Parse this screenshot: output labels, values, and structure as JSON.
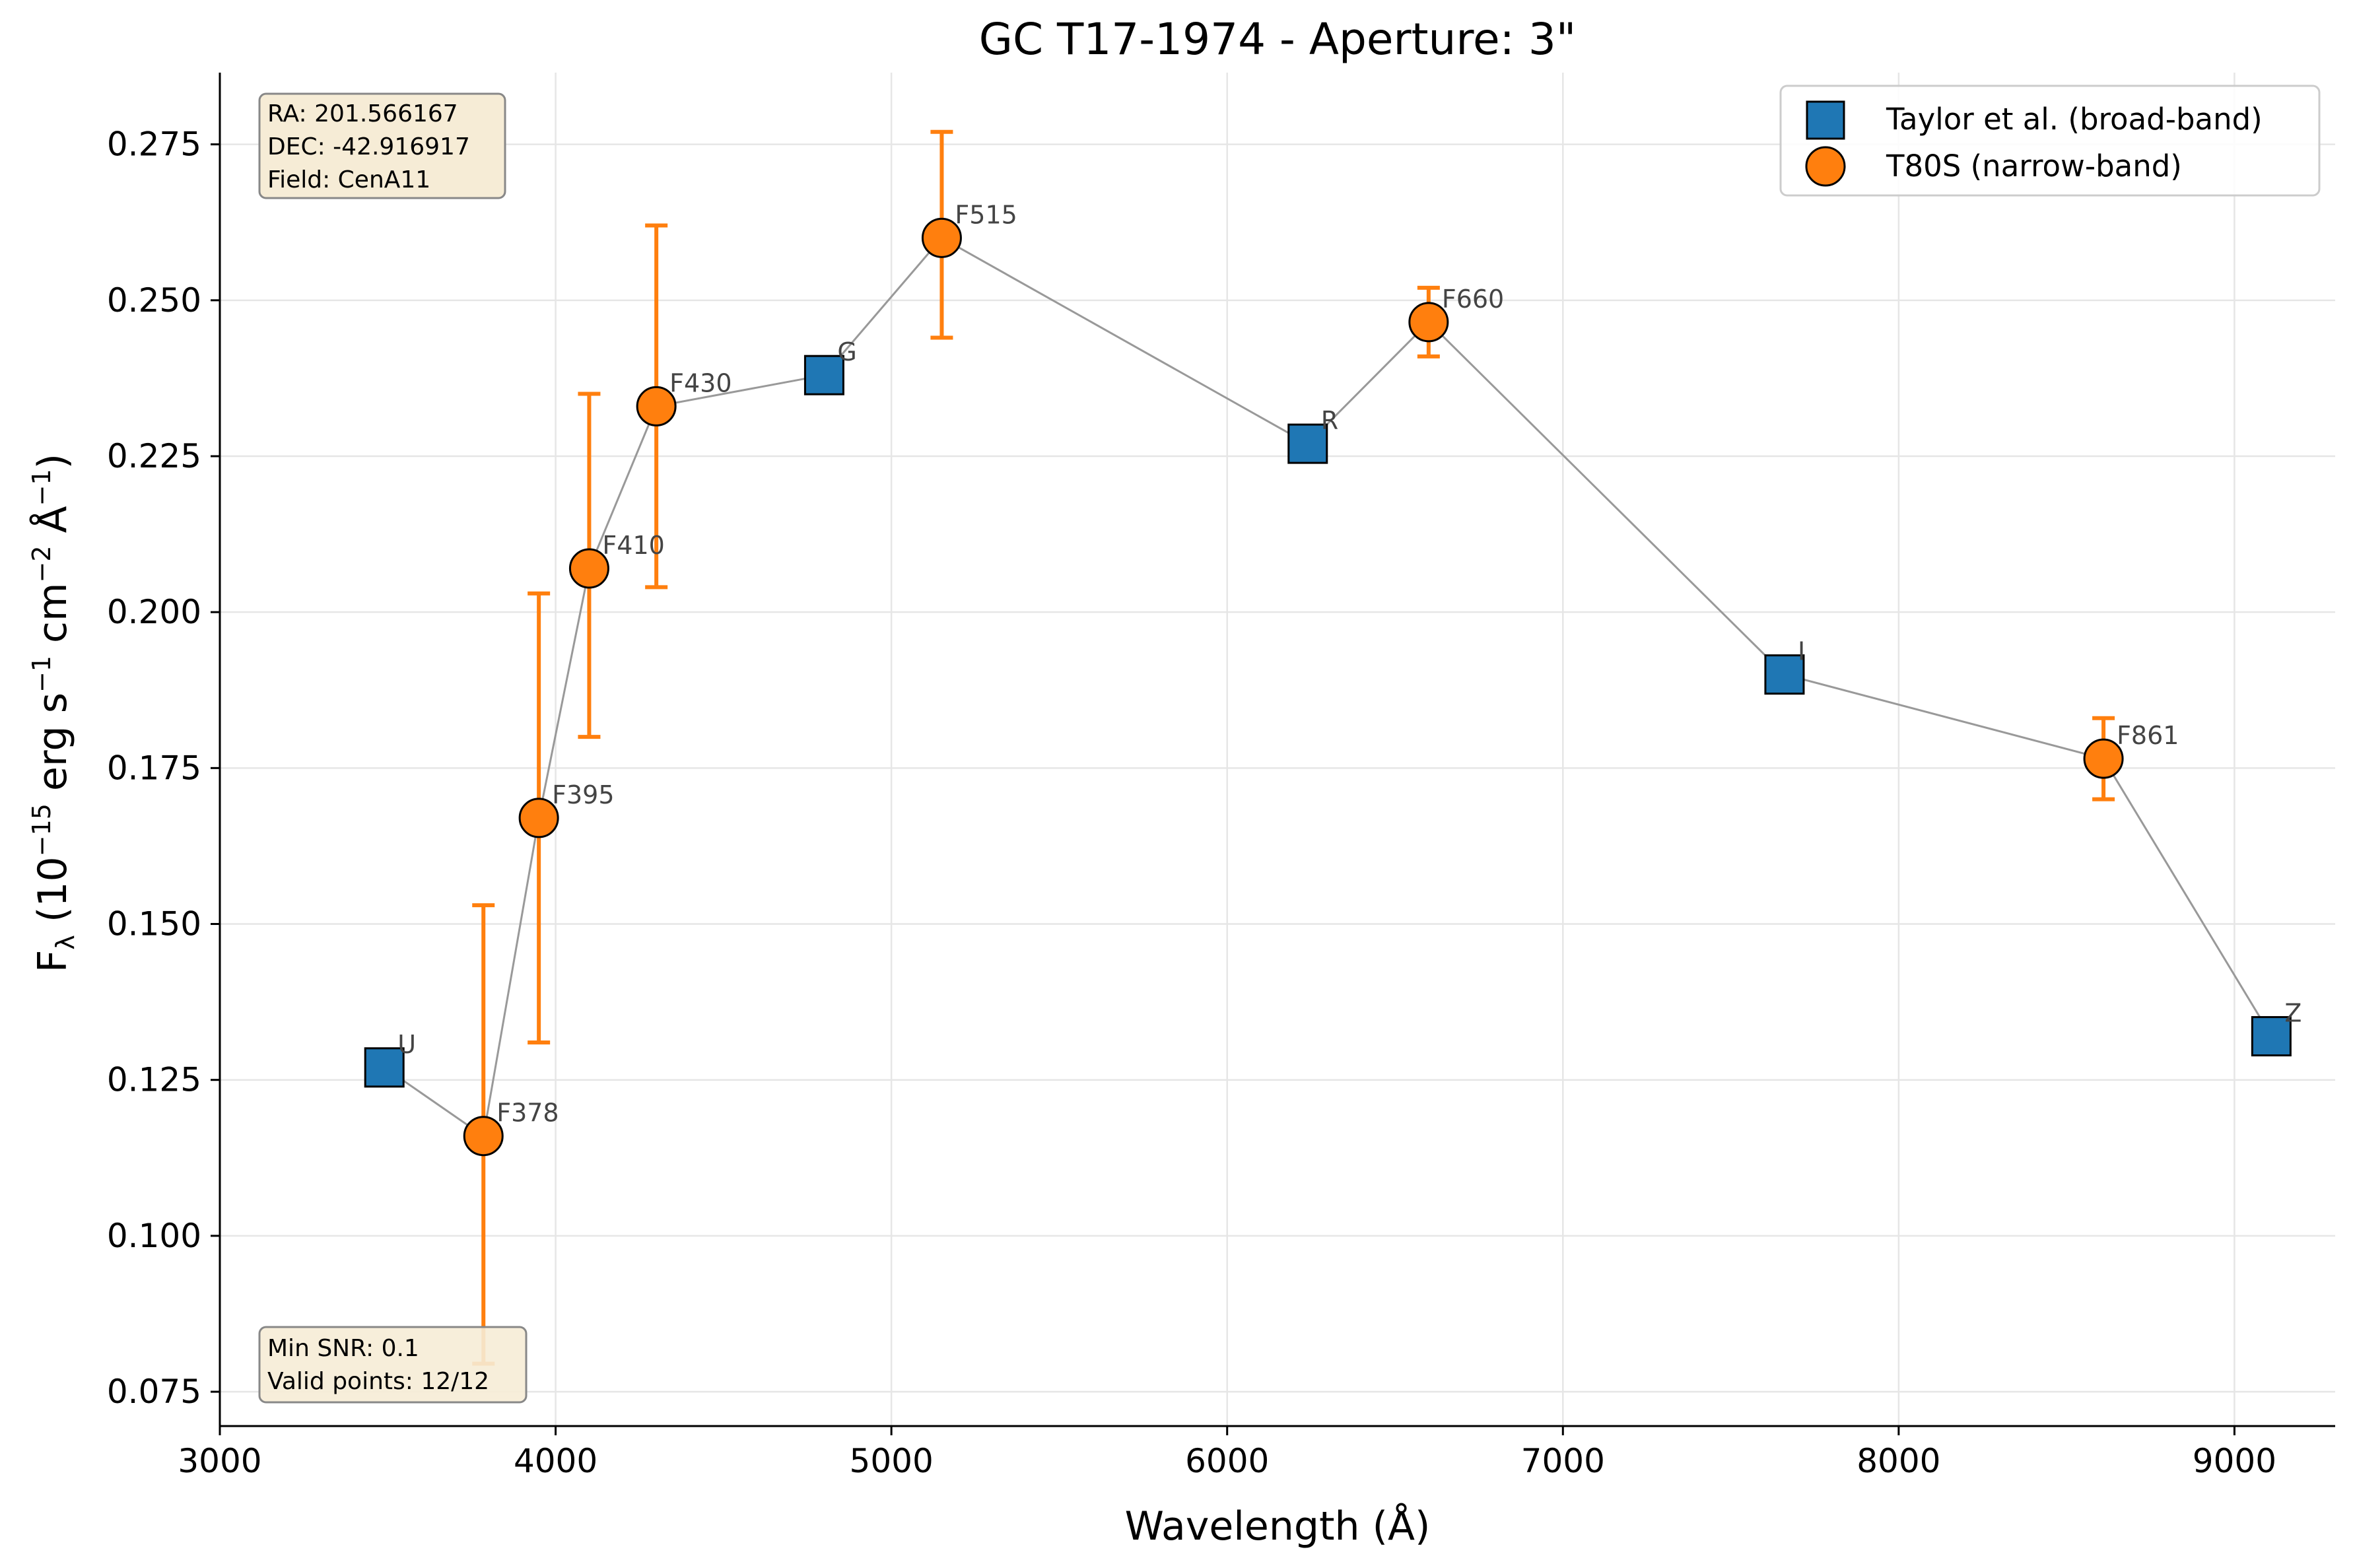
{
  "chart_data": {
    "type": "scatter",
    "title": "GC T17-1974 - Aperture: 3\"",
    "xlabel": "Wavelength (Å)",
    "ylabel_parts": {
      "base": "F",
      "sub": "λ",
      "open": " (10",
      "exp1": "−15",
      "mid1": " erg s",
      "exp2": "−1",
      "mid2": " cm",
      "exp3": "−2",
      "mid3": " Å",
      "exp4": "−1",
      "close": ")"
    },
    "xlim": [
      3000,
      9300
    ],
    "ylim": [
      0.0695,
      0.2865
    ],
    "xticks": [
      3000,
      4000,
      5000,
      6000,
      7000,
      8000,
      9000
    ],
    "yticks": [
      0.075,
      0.1,
      0.125,
      0.15,
      0.175,
      0.2,
      0.225,
      0.25,
      0.275
    ],
    "xtick_labels": [
      "3000",
      "4000",
      "5000",
      "6000",
      "7000",
      "8000",
      "9000"
    ],
    "ytick_labels": [
      "0.075",
      "0.100",
      "0.125",
      "0.150",
      "0.175",
      "0.200",
      "0.225",
      "0.250",
      "0.275"
    ],
    "grid": true,
    "legend_position": "top-right",
    "colors": {
      "broad": "#1f77b4",
      "narrow": "#ff7f0e",
      "line": "#999999",
      "grid": "#e6e6e6",
      "infobox_fill": "#f6ecd6",
      "infobox_edge": "#888888"
    },
    "series": [
      {
        "name": "Taylor et al. (broad-band)",
        "marker": "square",
        "points": [
          {
            "label": "U",
            "x": 3490,
            "y": 0.127
          },
          {
            "label": "G",
            "x": 4800,
            "y": 0.238
          },
          {
            "label": "R",
            "x": 6240,
            "y": 0.227
          },
          {
            "label": "I",
            "x": 7660,
            "y": 0.19
          },
          {
            "label": "Z",
            "x": 9110,
            "y": 0.132
          }
        ]
      },
      {
        "name": "T80S (narrow-band)",
        "marker": "circle",
        "points": [
          {
            "label": "F378",
            "x": 3785,
            "y": 0.116,
            "err_lo": 0.0795,
            "err_hi": 0.153
          },
          {
            "label": "F395",
            "x": 3950,
            "y": 0.167,
            "err_lo": 0.131,
            "err_hi": 0.203
          },
          {
            "label": "F410",
            "x": 4100,
            "y": 0.207,
            "err_lo": 0.18,
            "err_hi": 0.235
          },
          {
            "label": "F430",
            "x": 4300,
            "y": 0.233,
            "err_lo": 0.204,
            "err_hi": 0.262
          },
          {
            "label": "F515",
            "x": 5150,
            "y": 0.26,
            "err_lo": 0.244,
            "err_hi": 0.277
          },
          {
            "label": "F660",
            "x": 6600,
            "y": 0.2465,
            "err_lo": 0.241,
            "err_hi": 0.252
          },
          {
            "label": "F861",
            "x": 8610,
            "y": 0.1765,
            "err_lo": 0.17,
            "err_hi": 0.183
          }
        ]
      }
    ],
    "connecting_line_order": [
      "U",
      "F378",
      "F395",
      "F410",
      "F430",
      "G",
      "F515",
      "R",
      "F660",
      "I",
      "F861",
      "Z"
    ],
    "info_top": [
      "RA: 201.566167",
      "DEC: -42.916917",
      "Field: CenA11"
    ],
    "info_bottom": [
      "Min SNR: 0.1",
      "Valid points: 12/12"
    ]
  }
}
